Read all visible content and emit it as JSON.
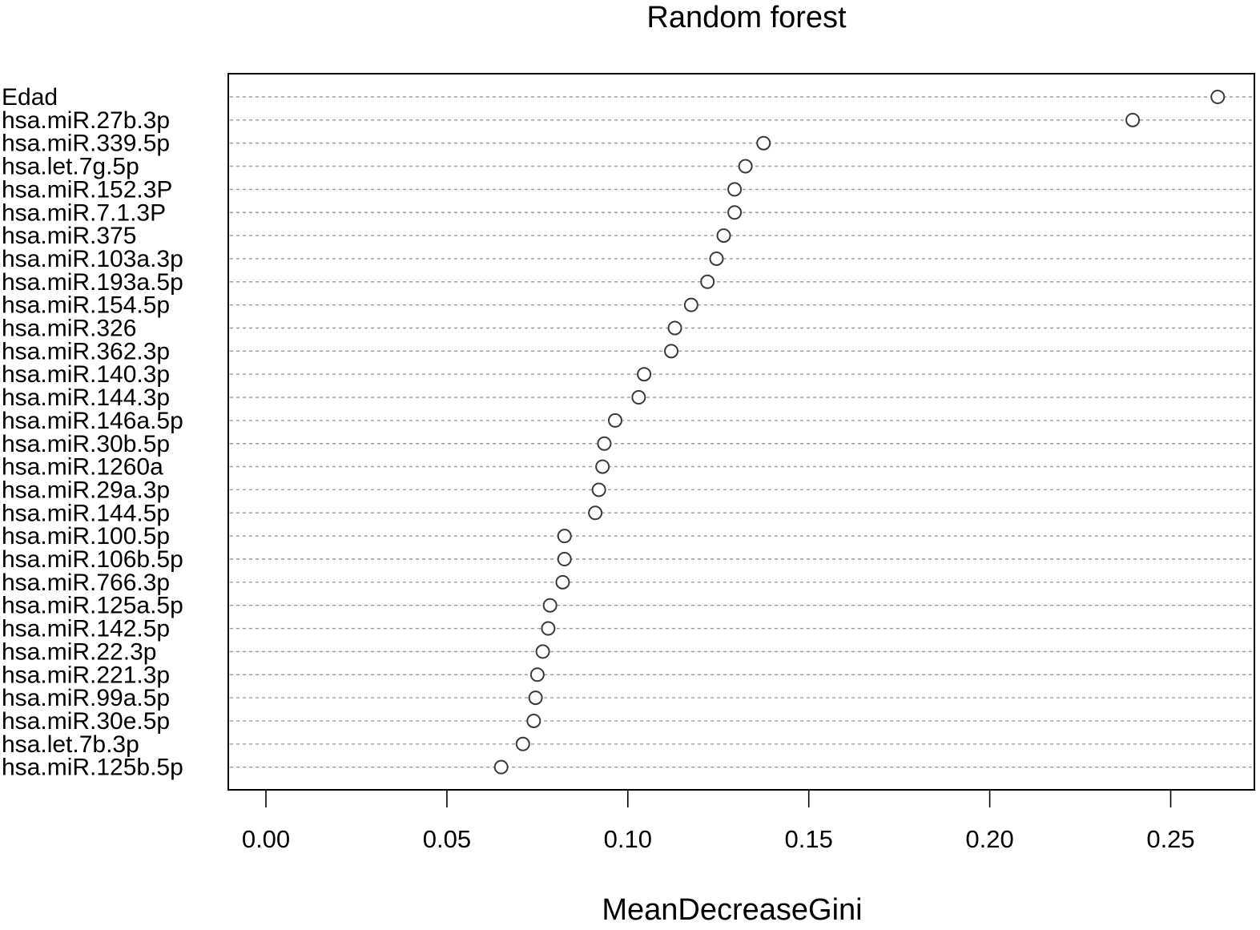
{
  "chart_data": {
    "type": "scatter",
    "title": "Random forest",
    "xlabel": "MeanDecreaseGini",
    "ylabel": "",
    "xlim": [
      0.0,
      0.27
    ],
    "x_ticks": [
      "0.00",
      "0.05",
      "0.10",
      "0.15",
      "0.20",
      "0.25"
    ],
    "grid": false,
    "categories": [
      "Edad",
      "hsa.miR.27b.3p",
      "hsa.miR.339.5p",
      "hsa.let.7g.5p",
      "hsa.miR.152.3P",
      "hsa.miR.7.1.3P",
      "hsa.miR.375",
      "hsa.miR.103a.3p",
      "hsa.miR.193a.5p",
      "hsa.miR.154.5p",
      "hsa.miR.326",
      "hsa.miR.362.3p",
      "hsa.miR.140.3p",
      "hsa.miR.144.3p",
      "hsa.miR.146a.5p",
      "hsa.miR.30b.5p",
      "hsa.miR.1260a",
      "hsa.miR.29a.3p",
      "hsa.miR.144.5p",
      "hsa.miR.100.5p",
      "hsa.miR.106b.5p",
      "hsa.miR.766.3p",
      "hsa.miR.125a.5p",
      "hsa.miR.142.5p",
      "hsa.miR.22.3p",
      "hsa.miR.221.3p",
      "hsa.miR.99a.5p",
      "hsa.miR.30e.5p",
      "hsa.let.7b.3p",
      "hsa.miR.125b.5p"
    ],
    "values": [
      0.263,
      0.2395,
      0.1375,
      0.1325,
      0.1295,
      0.1295,
      0.1265,
      0.1245,
      0.122,
      0.1175,
      0.113,
      0.112,
      0.1045,
      0.103,
      0.0965,
      0.0935,
      0.093,
      0.092,
      0.091,
      0.0825,
      0.0825,
      0.082,
      0.0785,
      0.078,
      0.0765,
      0.075,
      0.0745,
      0.074,
      0.071,
      0.065
    ],
    "marker": "open-circle",
    "colors": {
      "marker_stroke": "#3a3a3a",
      "guide_line": "#9a9a9a",
      "frame": "#000000"
    }
  }
}
